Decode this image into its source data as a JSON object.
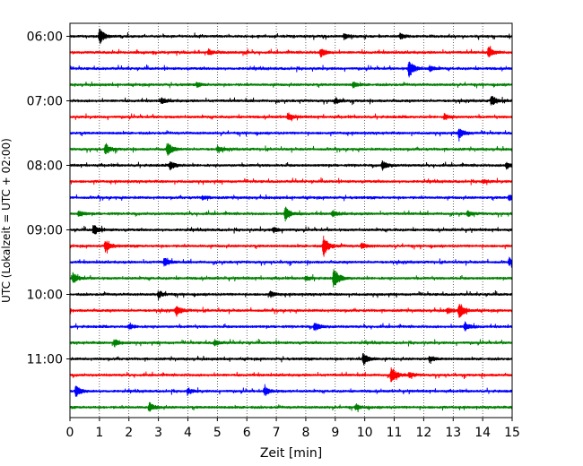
{
  "chart_data": {
    "type": "line",
    "title": "",
    "xlabel": "Zeit  [min]",
    "ylabel": "UTC (Lokalzeit = UTC + 02:00)",
    "xlim": [
      0,
      15
    ],
    "x_ticks": [
      "0",
      "1",
      "2",
      "3",
      "4",
      "5",
      "6",
      "7",
      "8",
      "9",
      "10",
      "11",
      "12",
      "13",
      "14",
      "15"
    ],
    "y_ticks": [
      "06:00",
      "07:00",
      "08:00",
      "09:00",
      "10:00",
      "11:00"
    ],
    "grid": "vertical dotted at each minute",
    "trace_interval_minutes": 15,
    "series_colors": [
      "#000000",
      "#ff0000",
      "#0000ff",
      "#008000"
    ],
    "traces": [
      {
        "start": "06:00",
        "color": "#000000",
        "events": [
          {
            "t": 1.0,
            "amp": 9
          },
          {
            "t": 9.3,
            "amp": 3
          },
          {
            "t": 11.2,
            "amp": 3
          }
        ]
      },
      {
        "start": "06:15",
        "color": "#ff0000",
        "events": [
          {
            "t": 8.5,
            "amp": 5
          },
          {
            "t": 14.2,
            "amp": 6
          },
          {
            "t": 4.7,
            "amp": 3
          }
        ]
      },
      {
        "start": "06:30",
        "color": "#0000ff",
        "events": [
          {
            "t": 11.5,
            "amp": 10
          },
          {
            "t": 12.2,
            "amp": 3
          }
        ]
      },
      {
        "start": "06:45",
        "color": "#008000",
        "events": [
          {
            "t": 9.6,
            "amp": 3
          },
          {
            "t": 4.3,
            "amp": 2
          }
        ]
      },
      {
        "start": "07:00",
        "color": "#000000",
        "events": [
          {
            "t": 14.3,
            "amp": 6
          },
          {
            "t": 3.1,
            "amp": 3
          },
          {
            "t": 9.0,
            "amp": 3
          }
        ]
      },
      {
        "start": "07:15",
        "color": "#ff0000",
        "events": [
          {
            "t": 7.4,
            "amp": 4
          },
          {
            "t": 12.7,
            "amp": 3
          }
        ]
      },
      {
        "start": "07:30",
        "color": "#0000ff",
        "events": [
          {
            "t": 13.2,
            "amp": 6
          }
        ]
      },
      {
        "start": "07:45",
        "color": "#008000",
        "events": [
          {
            "t": 3.3,
            "amp": 8
          },
          {
            "t": 1.2,
            "amp": 6
          },
          {
            "t": 5.0,
            "amp": 3
          }
        ]
      },
      {
        "start": "08:00",
        "color": "#000000",
        "events": [
          {
            "t": 3.4,
            "amp": 5
          },
          {
            "t": 10.6,
            "amp": 5
          },
          {
            "t": 14.8,
            "amp": 4
          }
        ]
      },
      {
        "start": "08:15",
        "color": "#ff0000",
        "events": [
          {
            "t": 14.0,
            "amp": 2
          }
        ]
      },
      {
        "start": "08:30",
        "color": "#0000ff",
        "events": [
          {
            "t": 14.9,
            "amp": 3
          },
          {
            "t": 4.5,
            "amp": 2
          }
        ]
      },
      {
        "start": "08:45",
        "color": "#008000",
        "events": [
          {
            "t": 7.3,
            "amp": 8
          },
          {
            "t": 0.3,
            "amp": 3
          },
          {
            "t": 8.9,
            "amp": 3
          },
          {
            "t": 13.5,
            "amp": 3
          }
        ]
      },
      {
        "start": "09:00",
        "color": "#000000",
        "events": [
          {
            "t": 0.8,
            "amp": 6
          },
          {
            "t": 6.9,
            "amp": 3
          }
        ]
      },
      {
        "start": "09:15",
        "color": "#ff0000",
        "events": [
          {
            "t": 8.6,
            "amp": 12
          },
          {
            "t": 1.2,
            "amp": 7
          },
          {
            "t": 9.9,
            "amp": 3
          }
        ]
      },
      {
        "start": "09:30",
        "color": "#0000ff",
        "events": [
          {
            "t": 3.2,
            "amp": 5
          },
          {
            "t": 14.9,
            "amp": 4
          }
        ]
      },
      {
        "start": "09:45",
        "color": "#008000",
        "events": [
          {
            "t": 8.95,
            "amp": 12
          },
          {
            "t": 0.1,
            "amp": 6
          },
          {
            "t": 8.0,
            "amp": 3
          }
        ]
      },
      {
        "start": "10:00",
        "color": "#000000",
        "events": [
          {
            "t": 3.0,
            "amp": 4
          },
          {
            "t": 6.8,
            "amp": 3
          }
        ]
      },
      {
        "start": "10:15",
        "color": "#ff0000",
        "events": [
          {
            "t": 3.6,
            "amp": 6
          },
          {
            "t": 13.2,
            "amp": 9
          },
          {
            "t": 12.8,
            "amp": 3
          }
        ]
      },
      {
        "start": "10:30",
        "color": "#0000ff",
        "events": [
          {
            "t": 8.3,
            "amp": 5
          },
          {
            "t": 13.4,
            "amp": 5
          },
          {
            "t": 2.0,
            "amp": 3
          }
        ]
      },
      {
        "start": "10:45",
        "color": "#008000",
        "events": [
          {
            "t": 1.5,
            "amp": 4
          },
          {
            "t": 4.9,
            "amp": 3
          }
        ]
      },
      {
        "start": "11:00",
        "color": "#000000",
        "events": [
          {
            "t": 9.95,
            "amp": 7
          },
          {
            "t": 12.2,
            "amp": 3
          }
        ]
      },
      {
        "start": "11:15",
        "color": "#ff0000",
        "events": [
          {
            "t": 10.9,
            "amp": 10
          },
          {
            "t": 11.5,
            "amp": 3
          }
        ]
      },
      {
        "start": "11:30",
        "color": "#0000ff",
        "events": [
          {
            "t": 0.2,
            "amp": 6
          },
          {
            "t": 6.6,
            "amp": 5
          },
          {
            "t": 4.0,
            "amp": 3
          }
        ]
      },
      {
        "start": "11:45",
        "color": "#008000",
        "events": [
          {
            "t": 2.7,
            "amp": 5
          },
          {
            "t": 9.7,
            "amp": 3
          }
        ]
      }
    ]
  }
}
